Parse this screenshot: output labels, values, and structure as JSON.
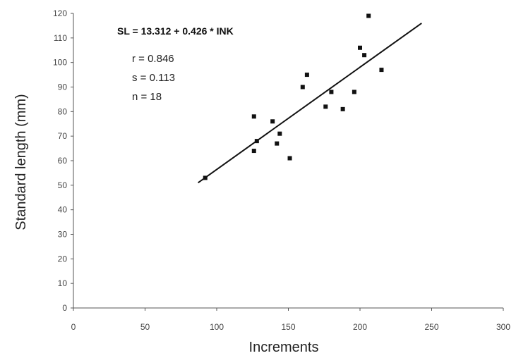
{
  "chart_data": {
    "type": "scatter",
    "title": "",
    "xlabel": "Increments",
    "ylabel": "Standard length (mm)",
    "xlim": [
      0,
      300
    ],
    "ylim": [
      0,
      120
    ],
    "x_ticks": [
      "0",
      "50",
      "100",
      "150",
      "200",
      "250",
      "300"
    ],
    "y_ticks": [
      "0",
      "10",
      "20",
      "30",
      "40",
      "50",
      "60",
      "70",
      "80",
      "90",
      "100",
      "110",
      "120"
    ],
    "grid": false,
    "points": [
      {
        "x": 92,
        "y": 53
      },
      {
        "x": 126,
        "y": 78
      },
      {
        "x": 126,
        "y": 64
      },
      {
        "x": 128,
        "y": 68
      },
      {
        "x": 139,
        "y": 76
      },
      {
        "x": 142,
        "y": 67
      },
      {
        "x": 144,
        "y": 71
      },
      {
        "x": 151,
        "y": 61
      },
      {
        "x": 160,
        "y": 90
      },
      {
        "x": 163,
        "y": 95
      },
      {
        "x": 176,
        "y": 82
      },
      {
        "x": 180,
        "y": 88
      },
      {
        "x": 188,
        "y": 81
      },
      {
        "x": 196,
        "y": 88
      },
      {
        "x": 200,
        "y": 106
      },
      {
        "x": 203,
        "y": 103
      },
      {
        "x": 206,
        "y": 119
      },
      {
        "x": 215,
        "y": 97
      }
    ],
    "fit_line": {
      "x_start": 87,
      "y_start": 51,
      "x_end": 243,
      "y_end": 116
    },
    "annotations": {
      "equation": "SL = 13.312 + 0.426 * INK",
      "r": "r =  0.846",
      "s": "s =  0.113",
      "n": "n = 18"
    },
    "colors": {
      "points": "#111111",
      "line": "#111111",
      "axis": "#555555"
    }
  }
}
